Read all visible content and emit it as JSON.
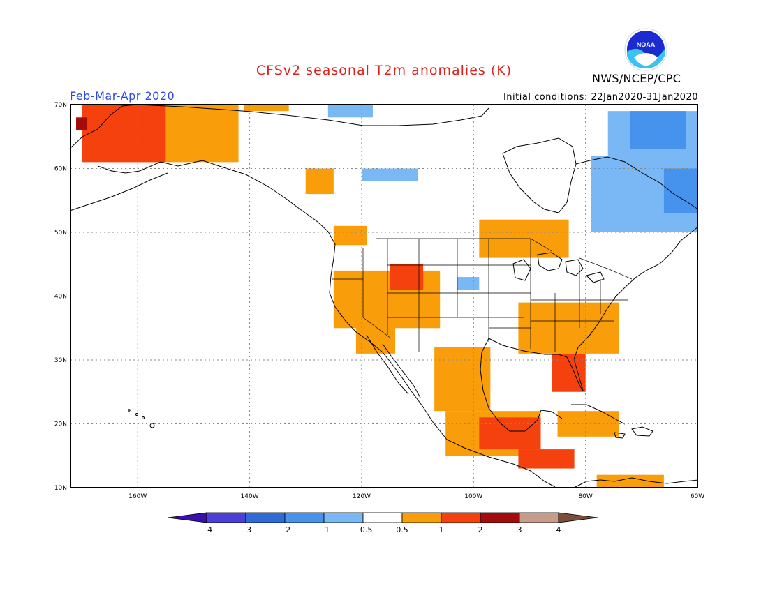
{
  "title": "CFSv2 seasonal T2m anomalies (K)",
  "period": "Feb-Mar-Apr 2020",
  "initial_conditions": "Initial conditions: 22Jan2020-31Jan2020",
  "agency": "NWS/NCEP/CPC",
  "logo_text": "NOAA",
  "map": {
    "lon_range": [
      -172,
      -60
    ],
    "lat_range": [
      10,
      70
    ],
    "lat_ticks": [
      70,
      60,
      50,
      40,
      30,
      20,
      10
    ],
    "lat_tick_labels": [
      "70N",
      "60N",
      "50N",
      "40N",
      "30N",
      "20N",
      "10N"
    ],
    "lon_ticks": [
      -160,
      -140,
      -120,
      -100,
      -80,
      -60
    ],
    "lon_tick_labels": [
      "160W",
      "140W",
      "120W",
      "100W",
      "80W",
      "60W"
    ]
  },
  "colorbar": {
    "labels": [
      "−4",
      "−3",
      "−2",
      "−1",
      "−0.5",
      "0.5",
      "1",
      "2",
      "3",
      "4"
    ],
    "colors": [
      "#3a0fb0",
      "#4a3fd6",
      "#2f6bd8",
      "#4693ee",
      "#7ab8f5",
      "#ffffff",
      "#f99d0a",
      "#f5410e",
      "#a30c0c",
      "#c79c8a",
      "#7a4f3a"
    ]
  },
  "colors": {
    "warm1": "#f99d0a",
    "warm2": "#f5410e",
    "warm3": "#a30c0c",
    "cool1": "#7ab8f5",
    "cool2": "#4693ee"
  },
  "anomaly_regions": [
    {
      "level": "warm1",
      "lon": [
        -165,
        -142
      ],
      "lat": [
        61,
        70
      ]
    },
    {
      "level": "warm2",
      "lon": [
        -170,
        -155
      ],
      "lat": [
        61,
        70
      ]
    },
    {
      "level": "warm3",
      "lon": [
        -171,
        -169
      ],
      "lat": [
        66,
        68
      ]
    },
    {
      "level": "warm1",
      "lon": [
        -141,
        -133
      ],
      "lat": [
        69,
        70
      ]
    },
    {
      "level": "cool1",
      "lon": [
        -126,
        -118
      ],
      "lat": [
        68,
        70
      ]
    },
    {
      "level": "cool1",
      "lon": [
        -120,
        -110
      ],
      "lat": [
        58,
        60
      ]
    },
    {
      "level": "cool1",
      "lon": [
        -76,
        -60
      ],
      "lat": [
        62,
        69
      ]
    },
    {
      "level": "cool2",
      "lon": [
        -72,
        -62
      ],
      "lat": [
        63,
        69
      ]
    },
    {
      "level": "cool1",
      "lon": [
        -79,
        -60
      ],
      "lat": [
        50,
        62
      ]
    },
    {
      "level": "cool2",
      "lon": [
        -66,
        -60
      ],
      "lat": [
        53,
        60
      ]
    },
    {
      "level": "warm1",
      "lon": [
        -130,
        -125
      ],
      "lat": [
        56,
        60
      ]
    },
    {
      "level": "warm1",
      "lon": [
        -125,
        -119
      ],
      "lat": [
        48,
        51
      ]
    },
    {
      "level": "warm1",
      "lon": [
        -99,
        -83
      ],
      "lat": [
        46,
        52
      ]
    },
    {
      "level": "warm1",
      "lon": [
        -125,
        -106
      ],
      "lat": [
        35,
        44
      ]
    },
    {
      "level": "warm2",
      "lon": [
        -115,
        -109
      ],
      "lat": [
        41,
        45
      ]
    },
    {
      "level": "warm1",
      "lon": [
        -121,
        -114
      ],
      "lat": [
        31,
        36
      ]
    },
    {
      "level": "cool1",
      "lon": [
        -103,
        -99
      ],
      "lat": [
        41,
        43
      ]
    },
    {
      "level": "warm1",
      "lon": [
        -92,
        -74
      ],
      "lat": [
        31,
        39
      ]
    },
    {
      "level": "warm2",
      "lon": [
        -86,
        -80
      ],
      "lat": [
        25,
        31
      ]
    },
    {
      "level": "warm1",
      "lon": [
        -107,
        -97
      ],
      "lat": [
        22,
        32
      ]
    },
    {
      "level": "warm1",
      "lon": [
        -105,
        -88
      ],
      "lat": [
        15,
        22
      ]
    },
    {
      "level": "warm2",
      "lon": [
        -99,
        -88
      ],
      "lat": [
        16,
        21
      ]
    },
    {
      "level": "warm2",
      "lon": [
        -92,
        -82
      ],
      "lat": [
        13,
        16
      ]
    },
    {
      "level": "warm1",
      "lon": [
        -85,
        -74
      ],
      "lat": [
        18,
        22
      ]
    },
    {
      "level": "warm1",
      "lon": [
        -78,
        -66
      ],
      "lat": [
        10,
        12
      ]
    }
  ]
}
